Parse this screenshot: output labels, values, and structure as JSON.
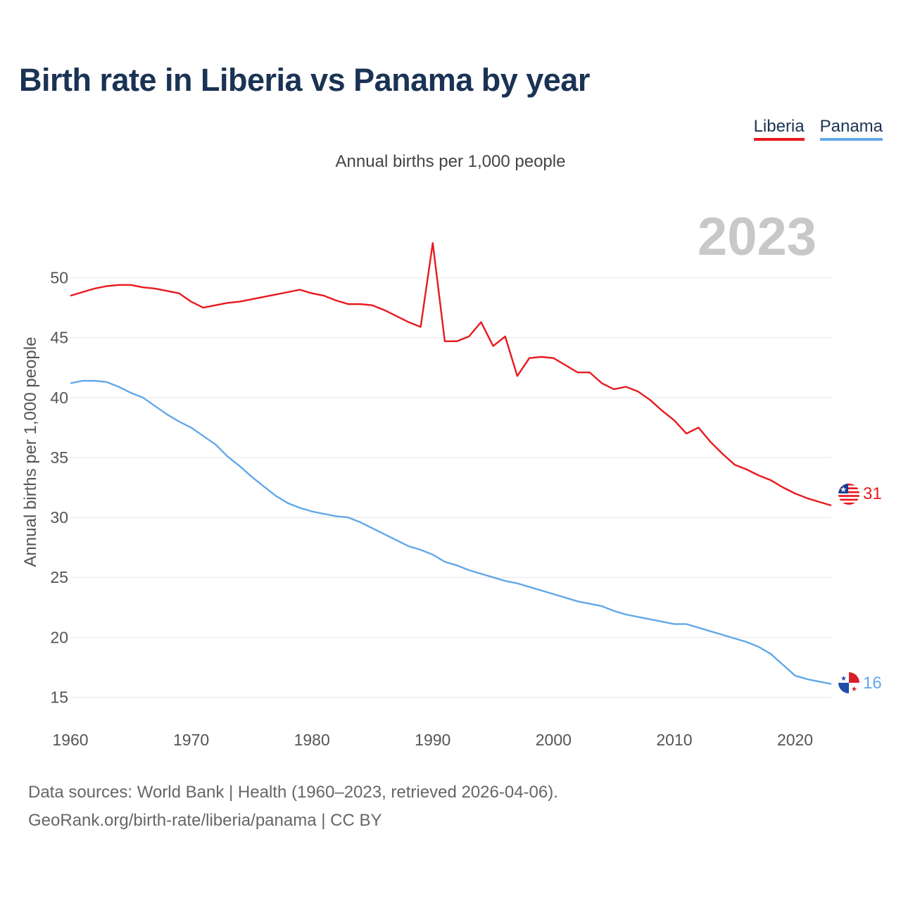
{
  "title": "Birth rate in Liberia vs Panama by year",
  "subtitle": "Annual births per 1,000 people",
  "legend": [
    {
      "label": "Liberia",
      "color": "#e8191e"
    },
    {
      "label": "Panama",
      "color": "#62a8e8"
    }
  ],
  "footer": {
    "line1": "Data sources: World Bank | Health (1960–2023, retrieved 2026-04-06).",
    "line2": "GeoRank.org/birth-rate/liberia/panama | CC BY"
  },
  "chart_data": {
    "type": "line",
    "title": "Birth rate in Liberia vs Panama by year",
    "ylabel": "Annual births per 1,000 people",
    "xlabel": "",
    "year_label": "2023",
    "xlim": [
      1960,
      2023
    ],
    "ylim": [
      13.5,
      53.5
    ],
    "x_ticks": [
      1960,
      1970,
      1980,
      1990,
      2000,
      2010,
      2020
    ],
    "y_ticks": [
      15,
      20,
      25,
      30,
      35,
      40,
      45,
      50
    ],
    "grid": true,
    "legend_position": "top-right",
    "x": [
      1960,
      1961,
      1962,
      1963,
      1964,
      1965,
      1966,
      1967,
      1968,
      1969,
      1970,
      1971,
      1972,
      1973,
      1974,
      1975,
      1976,
      1977,
      1978,
      1979,
      1980,
      1981,
      1982,
      1983,
      1984,
      1985,
      1986,
      1987,
      1988,
      1989,
      1990,
      1991,
      1992,
      1993,
      1994,
      1995,
      1996,
      1997,
      1998,
      1999,
      2000,
      2001,
      2002,
      2003,
      2004,
      2005,
      2006,
      2007,
      2008,
      2009,
      2010,
      2011,
      2012,
      2013,
      2014,
      2015,
      2016,
      2017,
      2018,
      2019,
      2020,
      2021,
      2022,
      2023
    ],
    "series": [
      {
        "name": "Liberia",
        "color": "#e8191e",
        "end_label": "31",
        "values": [
          48.5,
          48.8,
          49.1,
          49.3,
          49.4,
          49.4,
          49.2,
          49.1,
          48.9,
          48.7,
          48.0,
          47.5,
          47.7,
          47.9,
          48.0,
          48.2,
          48.4,
          48.6,
          48.8,
          49.0,
          48.7,
          48.5,
          48.1,
          47.8,
          47.8,
          47.7,
          47.3,
          46.8,
          46.3,
          45.9,
          52.9,
          44.7,
          44.7,
          45.1,
          46.3,
          44.3,
          45.1,
          41.8,
          43.3,
          43.4,
          43.3,
          42.7,
          42.1,
          42.1,
          41.2,
          40.7,
          40.9,
          40.5,
          39.8,
          38.9,
          38.1,
          37.0,
          37.5,
          36.3,
          35.3,
          34.4,
          34.0,
          33.5,
          33.1,
          32.5,
          32.0,
          31.6,
          31.3,
          31.0
        ]
      },
      {
        "name": "Panama",
        "color": "#62a8e8",
        "end_label": "16",
        "values": [
          41.2,
          41.4,
          41.4,
          41.3,
          40.9,
          40.4,
          40.0,
          39.3,
          38.6,
          38.0,
          37.5,
          36.8,
          36.1,
          35.1,
          34.3,
          33.4,
          32.6,
          31.8,
          31.2,
          30.8,
          30.5,
          30.3,
          30.1,
          30.0,
          29.6,
          29.1,
          28.6,
          28.1,
          27.6,
          27.3,
          26.9,
          26.3,
          26.0,
          25.6,
          25.3,
          25.0,
          24.7,
          24.5,
          24.2,
          23.9,
          23.6,
          23.3,
          23.0,
          22.8,
          22.6,
          22.2,
          21.9,
          21.7,
          21.5,
          21.3,
          21.1,
          21.1,
          20.8,
          20.5,
          20.2,
          19.9,
          19.6,
          19.2,
          18.6,
          17.7,
          16.8,
          16.5,
          16.3,
          16.1
        ]
      }
    ]
  }
}
